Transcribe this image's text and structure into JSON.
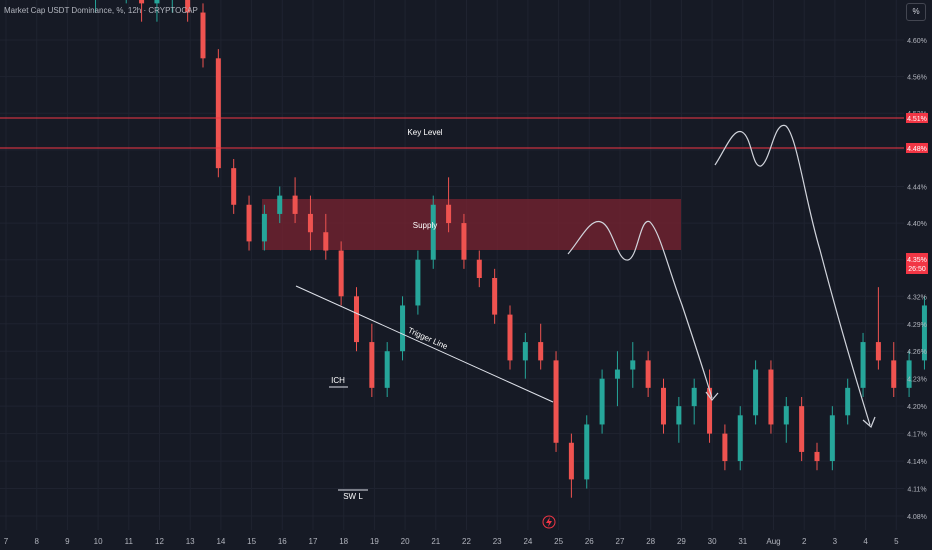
{
  "header": {
    "title": "Market Cap USDT Dominance, %, 12h · CRYPTOCAP"
  },
  "scale_button": "%",
  "colors": {
    "background": "#161a25",
    "up": "#26a69a",
    "down": "#ef5350",
    "level_line": "#f23645",
    "supply_fill": "#8b2a37",
    "axis_text": "#b2b5be",
    "grid": "#1f2330"
  },
  "annotations": {
    "key_level": "Key Level",
    "supply": "Supply",
    "trigger_line": "Trigger Line",
    "ich": "ICH",
    "swl": "SW L"
  },
  "price_tags": {
    "level_high": "4.51%",
    "level_low": "4.48%",
    "current_price": "4.35%",
    "countdown": "26:50"
  },
  "bottom_icon": "lightning-icon",
  "chart_data": {
    "type": "candlestick",
    "title": "Market Cap USDT Dominance, %, 12h · CRYPTOCAP",
    "y_ticks": [
      "4.60%",
      "4.56%",
      "4.52%",
      "4.48%",
      "4.44%",
      "4.40%",
      "4.36%",
      "4.32%",
      "4.29%",
      "4.26%",
      "4.23%",
      "4.20%",
      "4.17%",
      "4.14%",
      "4.11%",
      "4.08%"
    ],
    "y_tick_values": [
      4.6,
      4.56,
      4.52,
      4.48,
      4.44,
      4.4,
      4.36,
      4.32,
      4.29,
      4.26,
      4.23,
      4.2,
      4.17,
      4.14,
      4.11,
      4.08
    ],
    "ylim": [
      4.065,
      4.645
    ],
    "x_ticks": [
      "7",
      "8",
      "9",
      "10",
      "11",
      "12",
      "13",
      "14",
      "15",
      "16",
      "17",
      "18",
      "19",
      "20",
      "21",
      "22",
      "23",
      "24",
      "25",
      "26",
      "27",
      "28",
      "29",
      "30",
      "31",
      "Aug",
      "2",
      "3",
      "4",
      "5"
    ],
    "levels": [
      {
        "label": "Key Level",
        "value": 4.51
      },
      {
        "value": 4.48
      }
    ],
    "supply_zone": {
      "label": "Supply",
      "from_day": 15.5,
      "to_day": 29.2,
      "low": 4.365,
      "high": 4.418
    },
    "trigger_line": {
      "label": "Trigger Line",
      "points": [
        [
          16.5,
          4.325
        ],
        [
          24.8,
          4.2
        ]
      ]
    },
    "current_price": 4.35,
    "candles_day_start": 7,
    "candles": [
      [
        4.66,
        4.7,
        4.63,
        4.68
      ],
      [
        4.68,
        4.7,
        4.65,
        4.66
      ],
      [
        4.66,
        4.69,
        4.64,
        4.67
      ],
      [
        4.67,
        4.68,
        4.62,
        4.64
      ],
      [
        4.64,
        4.66,
        4.62,
        4.65
      ],
      [
        4.65,
        4.68,
        4.63,
        4.66
      ],
      [
        4.66,
        4.67,
        4.62,
        4.63
      ],
      [
        4.63,
        4.64,
        4.57,
        4.58
      ],
      [
        4.58,
        4.59,
        4.45,
        4.46
      ],
      [
        4.46,
        4.47,
        4.41,
        4.42
      ],
      [
        4.42,
        4.43,
        4.37,
        4.38
      ],
      [
        4.38,
        4.42,
        4.37,
        4.41
      ],
      [
        4.41,
        4.44,
        4.4,
        4.43
      ],
      [
        4.43,
        4.45,
        4.4,
        4.41
      ],
      [
        4.41,
        4.43,
        4.37,
        4.39
      ],
      [
        4.39,
        4.41,
        4.36,
        4.37
      ],
      [
        4.37,
        4.38,
        4.31,
        4.32
      ],
      [
        4.32,
        4.33,
        4.26,
        4.27
      ],
      [
        4.27,
        4.29,
        4.21,
        4.22
      ],
      [
        4.22,
        4.27,
        4.21,
        4.26
      ],
      [
        4.26,
        4.32,
        4.25,
        4.31
      ],
      [
        4.31,
        4.37,
        4.3,
        4.36
      ],
      [
        4.36,
        4.43,
        4.35,
        4.42
      ],
      [
        4.42,
        4.45,
        4.39,
        4.4
      ],
      [
        4.4,
        4.41,
        4.35,
        4.36
      ],
      [
        4.36,
        4.37,
        4.33,
        4.34
      ],
      [
        4.34,
        4.35,
        4.29,
        4.3
      ],
      [
        4.3,
        4.31,
        4.24,
        4.25
      ],
      [
        4.25,
        4.28,
        4.23,
        4.27
      ],
      [
        4.27,
        4.29,
        4.24,
        4.25
      ],
      [
        4.25,
        4.26,
        4.15,
        4.16
      ],
      [
        4.16,
        4.17,
        4.1,
        4.12
      ],
      [
        4.12,
        4.19,
        4.11,
        4.18
      ],
      [
        4.18,
        4.24,
        4.17,
        4.23
      ],
      [
        4.23,
        4.26,
        4.2,
        4.24
      ],
      [
        4.24,
        4.27,
        4.22,
        4.25
      ],
      [
        4.25,
        4.26,
        4.21,
        4.22
      ],
      [
        4.22,
        4.23,
        4.17,
        4.18
      ],
      [
        4.18,
        4.21,
        4.16,
        4.2
      ],
      [
        4.2,
        4.23,
        4.18,
        4.22
      ],
      [
        4.22,
        4.24,
        4.16,
        4.17
      ],
      [
        4.17,
        4.18,
        4.13,
        4.14
      ],
      [
        4.14,
        4.2,
        4.13,
        4.19
      ],
      [
        4.19,
        4.25,
        4.18,
        4.24
      ],
      [
        4.24,
        4.25,
        4.17,
        4.18
      ],
      [
        4.18,
        4.21,
        4.16,
        4.2
      ],
      [
        4.2,
        4.21,
        4.14,
        4.15
      ],
      [
        4.15,
        4.16,
        4.13,
        4.14
      ],
      [
        4.14,
        4.2,
        4.13,
        4.19
      ],
      [
        4.19,
        4.23,
        4.18,
        4.22
      ],
      [
        4.22,
        4.28,
        4.21,
        4.27
      ],
      [
        4.27,
        4.33,
        4.24,
        4.25
      ],
      [
        4.25,
        4.27,
        4.21,
        4.22
      ],
      [
        4.22,
        4.26,
        4.21,
        4.25
      ],
      [
        4.25,
        4.32,
        4.24,
        4.31
      ],
      [
        4.31,
        4.37,
        4.3,
        4.35
      ]
    ],
    "projections": [
      {
        "points": [
          [
            26.5,
            4.36
          ],
          [
            27.2,
            4.405
          ],
          [
            27.9,
            4.36
          ],
          [
            28.5,
            4.405
          ],
          [
            29.4,
            4.25
          ],
          [
            30.2,
            4.19
          ]
        ]
      },
      {
        "points": [
          [
            30.4,
            4.45
          ],
          [
            31.0,
            4.5
          ],
          [
            31.6,
            4.46
          ],
          [
            32.3,
            4.51
          ],
          [
            33.2,
            4.35
          ],
          [
            34.3,
            4.17
          ]
        ]
      }
    ]
  }
}
